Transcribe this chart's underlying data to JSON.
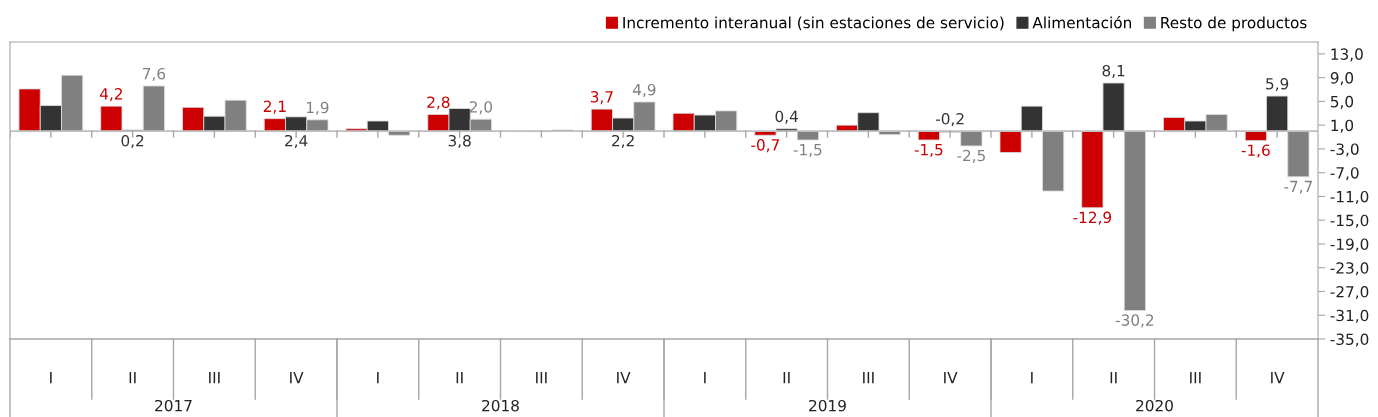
{
  "chart_data": {
    "type": "bar",
    "categories": [
      "I",
      "II",
      "III",
      "IV",
      "I",
      "II",
      "III",
      "IV",
      "I",
      "II",
      "III",
      "IV",
      "I",
      "II",
      "III",
      "IV"
    ],
    "series": [
      {
        "name": "Incremento interanual (sin estaciones de servicio)",
        "color": "#cc0000",
        "values": [
          7.1,
          4.2,
          4.0,
          2.1,
          0.4,
          2.8,
          null,
          3.7,
          3.0,
          -0.7,
          1.0,
          -1.5,
          -3.6,
          -12.9,
          2.3,
          -1.6
        ],
        "value_labels": [
          null,
          "4,2",
          null,
          "2,1",
          null,
          "2,8",
          null,
          "3,7",
          null,
          "-0,7",
          null,
          "-1,5",
          null,
          "-12,9",
          null,
          "-1,6"
        ]
      },
      {
        "name": "Alimentación",
        "color": "#333333",
        "values": [
          4.3,
          0.2,
          2.5,
          2.4,
          1.7,
          3.8,
          -0.1,
          2.2,
          2.7,
          0.4,
          3.1,
          -0.2,
          4.2,
          8.1,
          1.7,
          5.9
        ],
        "value_labels": [
          null,
          "0,2",
          null,
          "2,4",
          null,
          "3,8",
          null,
          "2,2",
          null,
          "0,4",
          null,
          "-0,2",
          null,
          "8,1",
          null,
          "5,9"
        ]
      },
      {
        "name": "Resto de productos",
        "color": "#808080",
        "values": [
          9.4,
          7.6,
          5.2,
          1.9,
          -0.7,
          2.0,
          0.2,
          4.9,
          3.4,
          -1.5,
          -0.6,
          -2.5,
          -10.1,
          -30.2,
          2.8,
          -7.7
        ],
        "value_labels": [
          null,
          "7,6",
          null,
          "1,9",
          null,
          "2,0",
          null,
          "4,9",
          null,
          "-1,5",
          null,
          "-2,5",
          null,
          "-30,2",
          null,
          "-7,7"
        ]
      }
    ],
    "annotations": [
      "2017",
      "2018",
      "2019",
      "2020"
    ],
    "ylim": [
      -35,
      15
    ],
    "yticks": [
      {
        "value": 13,
        "label": "13,0"
      },
      {
        "value": 9,
        "label": "9,0"
      },
      {
        "value": 5,
        "label": "5,0"
      },
      {
        "value": 1,
        "label": "1,0"
      },
      {
        "value": -3,
        "label": "-3,0"
      },
      {
        "value": -7,
        "label": "-7,0"
      },
      {
        "value": -11,
        "label": "-11,0"
      },
      {
        "value": -15,
        "label": "-15,0"
      },
      {
        "value": -19,
        "label": "-19,0"
      },
      {
        "value": -23,
        "label": "-23,0"
      },
      {
        "value": -27,
        "label": "-27,0"
      },
      {
        "value": -31,
        "label": "-31,0"
      },
      {
        "value": -35,
        "label": "-35,0"
      }
    ],
    "grid": false,
    "legend": "top right"
  }
}
